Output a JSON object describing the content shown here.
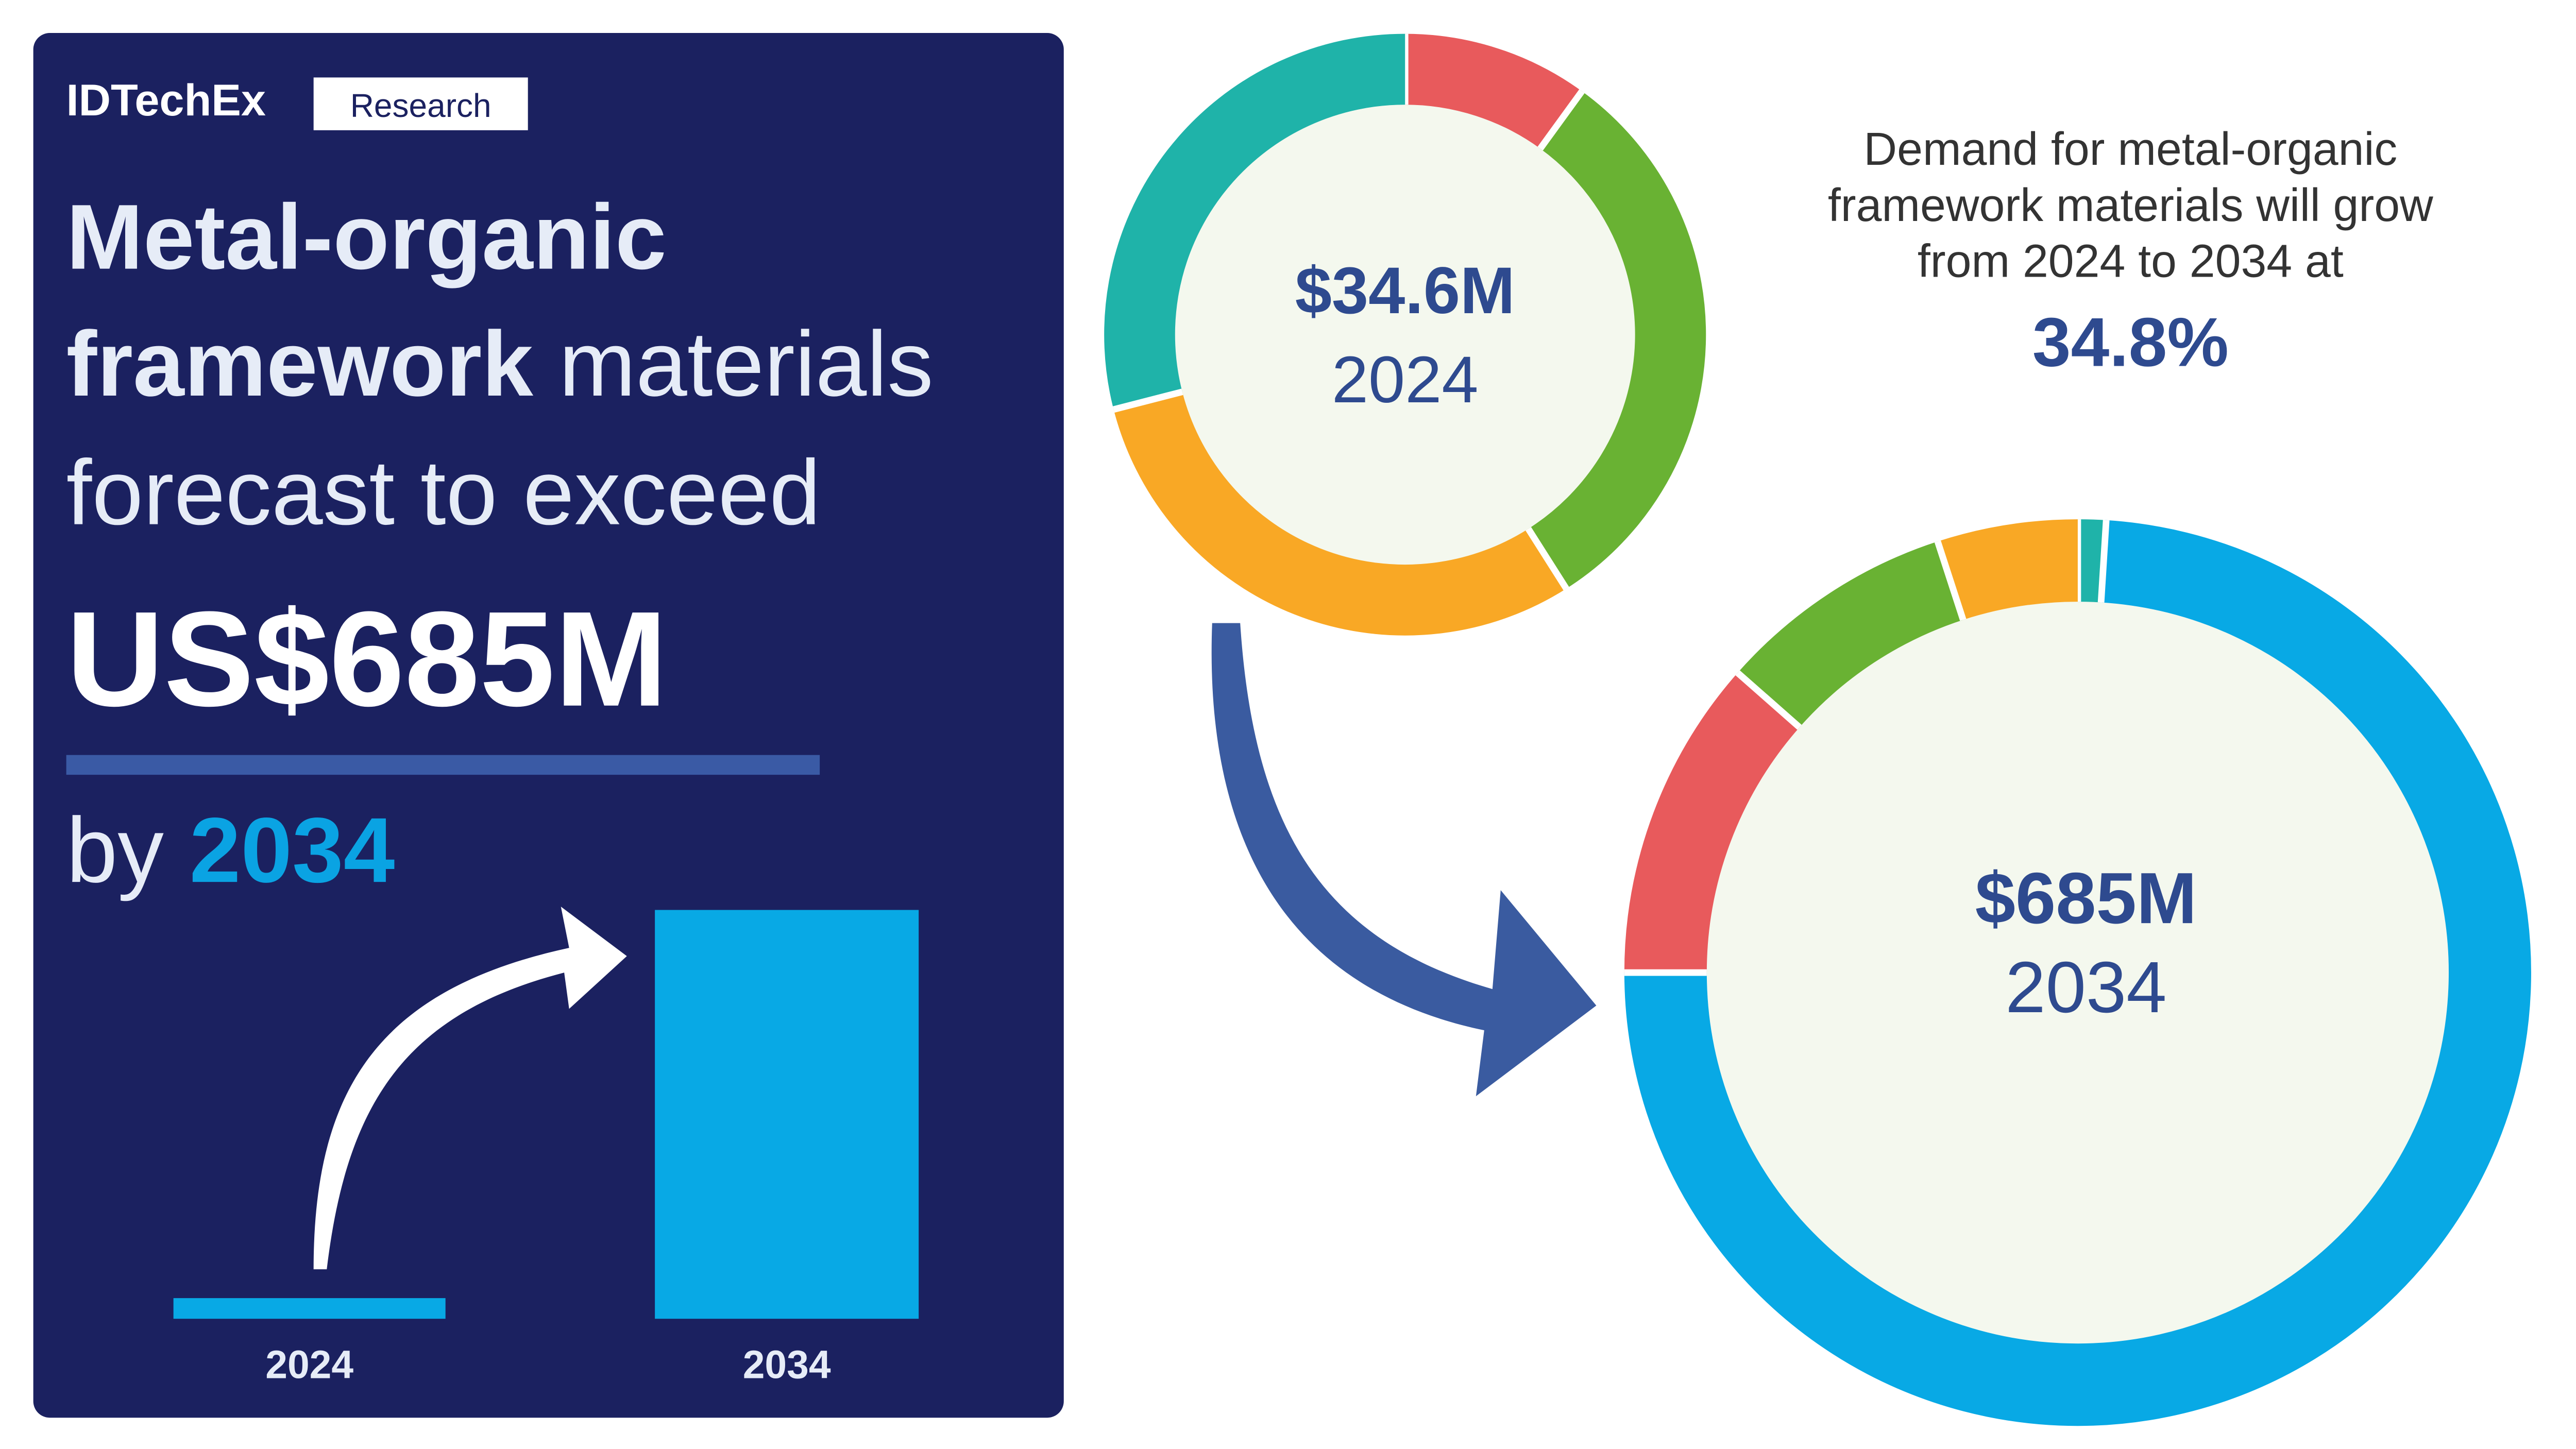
{
  "brand": "IDTechEx",
  "badge": "Research",
  "headline": {
    "line1": "Metal-organic",
    "line2_bold": "framework",
    "line2_light": " materials",
    "line3": "forecast to exceed",
    "amount": "US$685M",
    "by": "by ",
    "year": "2034"
  },
  "cagr": {
    "lines": [
      "Demand for metal-organic",
      "framework materials will grow",
      "from 2024 to 2034 at"
    ],
    "value": "34.8%"
  },
  "chart_data": [
    {
      "type": "bar",
      "categories": [
        "2024",
        "2034"
      ],
      "values": [
        34.6,
        685
      ],
      "color": "#08a9e5"
    },
    {
      "type": "pie",
      "center_value": "$34.6M",
      "center_label": "2024",
      "categories": [
        null,
        null,
        null,
        null
      ],
      "values": [
        10,
        31,
        30,
        29
      ],
      "colors": [
        "#e85a5c",
        "#69b233",
        "#f9a825",
        "#1fb3a9"
      ]
    },
    {
      "type": "pie",
      "center_value": "$685M",
      "center_label": "2034",
      "categories": [
        null,
        null,
        null,
        null,
        null
      ],
      "values": [
        1,
        74,
        11.5,
        8.5,
        5
      ],
      "colors": [
        "#1fb3a9",
        "#08a9e5",
        "#e85a5c",
        "#69b233",
        "#f9a825"
      ]
    }
  ]
}
